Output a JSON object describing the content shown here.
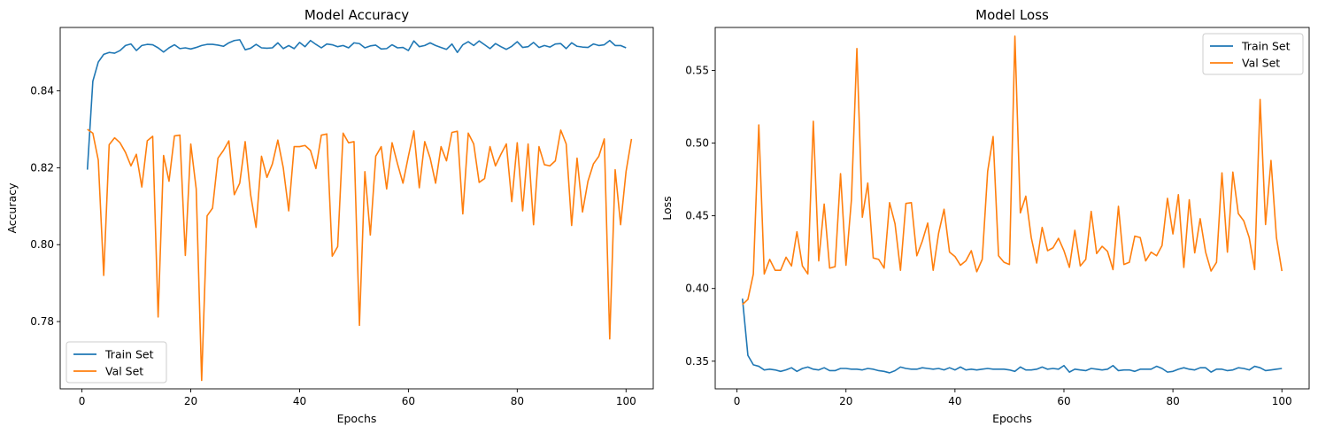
{
  "chart_data": [
    {
      "type": "line",
      "title": "Model Accuracy",
      "xlabel": "Epochs",
      "ylabel": "Accuracy",
      "xlim": [
        -4,
        105
      ],
      "ylim": [
        0.7625,
        0.8565
      ],
      "xticks": [
        0,
        20,
        40,
        60,
        80,
        100
      ],
      "yticks": [
        0.78,
        0.8,
        0.82,
        0.84
      ],
      "ytick_labels": [
        "0.78",
        "0.80",
        "0.82",
        "0.84"
      ],
      "grid": false,
      "legend_position": "lower-left",
      "colors": [
        "#1f77b4",
        "#ff7f0e"
      ],
      "x_start": 1,
      "series": [
        {
          "name": "Train Set",
          "values": [
            0.8195,
            0.8425,
            0.8475,
            0.8495,
            0.85,
            0.8498,
            0.8505,
            0.8518,
            0.8522,
            0.8505,
            0.8518,
            0.8521,
            0.852,
            0.8512,
            0.8501,
            0.8512,
            0.852,
            0.851,
            0.8512,
            0.8509,
            0.8513,
            0.8518,
            0.8521,
            0.8521,
            0.8519,
            0.8516,
            0.8525,
            0.8531,
            0.8533,
            0.8507,
            0.8511,
            0.8521,
            0.8512,
            0.8511,
            0.8512,
            0.8525,
            0.851,
            0.8518,
            0.851,
            0.8526,
            0.8515,
            0.8531,
            0.8521,
            0.8512,
            0.8522,
            0.852,
            0.8515,
            0.8518,
            0.8512,
            0.8525,
            0.8523,
            0.8512,
            0.8517,
            0.8519,
            0.8509,
            0.851,
            0.852,
            0.8512,
            0.8513,
            0.8505,
            0.853,
            0.8515,
            0.8518,
            0.8525,
            0.8518,
            0.8513,
            0.8508,
            0.8522,
            0.85,
            0.852,
            0.8528,
            0.8518,
            0.853,
            0.852,
            0.851,
            0.8523,
            0.8515,
            0.8508,
            0.8516,
            0.8528,
            0.8513,
            0.8515,
            0.8526,
            0.8513,
            0.8518,
            0.8514,
            0.8522,
            0.8523,
            0.851,
            0.8525,
            0.8516,
            0.8514,
            0.8513,
            0.8522,
            0.8518,
            0.852,
            0.8531,
            0.8518,
            0.8518,
            0.8512
          ]
        },
        {
          "name": "Val Set",
          "values": [
            0.83,
            0.829,
            0.822,
            0.792,
            0.826,
            0.8278,
            0.8265,
            0.824,
            0.8205,
            0.8235,
            0.815,
            0.827,
            0.8282,
            0.7812,
            0.8232,
            0.8165,
            0.8283,
            0.8285,
            0.7972,
            0.8262,
            0.8145,
            0.7647,
            0.8075,
            0.8095,
            0.8225,
            0.8245,
            0.827,
            0.813,
            0.816,
            0.8268,
            0.813,
            0.8045,
            0.823,
            0.8175,
            0.821,
            0.8272,
            0.82,
            0.8088,
            0.8255,
            0.8255,
            0.8258,
            0.8245,
            0.8198,
            0.8285,
            0.8288,
            0.797,
            0.7995,
            0.829,
            0.8265,
            0.8268,
            0.779,
            0.819,
            0.8025,
            0.823,
            0.8255,
            0.8145,
            0.8265,
            0.821,
            0.816,
            0.823,
            0.8296,
            0.8148,
            0.8268,
            0.8225,
            0.816,
            0.8255,
            0.8218,
            0.8292,
            0.8295,
            0.808,
            0.829,
            0.8262,
            0.8162,
            0.8172,
            0.8255,
            0.8205,
            0.8235,
            0.8262,
            0.8112,
            0.8265,
            0.8088,
            0.8262,
            0.8052,
            0.8255,
            0.8208,
            0.8205,
            0.8218,
            0.8298,
            0.8262,
            0.805,
            0.8225,
            0.8085,
            0.8165,
            0.821,
            0.823,
            0.8275,
            0.7755,
            0.8195,
            0.8052,
            0.819,
            0.8275
          ]
        }
      ]
    },
    {
      "type": "line",
      "title": "Model Loss",
      "xlabel": "Epochs",
      "ylabel": "Loss",
      "xlim": [
        -4,
        105
      ],
      "ylim": [
        0.331,
        0.5795
      ],
      "xticks": [
        0,
        20,
        40,
        60,
        80,
        100
      ],
      "yticks": [
        0.35,
        0.4,
        0.45,
        0.5,
        0.55
      ],
      "ytick_labels": [
        "0.35",
        "0.40",
        "0.45",
        "0.50",
        "0.55"
      ],
      "grid": false,
      "legend_position": "upper-right",
      "colors": [
        "#1f77b4",
        "#ff7f0e"
      ],
      "x_start": 1,
      "series": [
        {
          "name": "Train Set",
          "values": [
            0.393,
            0.354,
            0.3475,
            0.3465,
            0.344,
            0.3445,
            0.344,
            0.343,
            0.344,
            0.3455,
            0.343,
            0.345,
            0.346,
            0.3445,
            0.344,
            0.3455,
            0.3435,
            0.3435,
            0.345,
            0.345,
            0.3445,
            0.3445,
            0.344,
            0.345,
            0.3445,
            0.3435,
            0.343,
            0.342,
            0.3435,
            0.346,
            0.345,
            0.3445,
            0.3445,
            0.3455,
            0.345,
            0.3445,
            0.345,
            0.344,
            0.3455,
            0.344,
            0.346,
            0.344,
            0.3445,
            0.344,
            0.3445,
            0.345,
            0.3445,
            0.3445,
            0.3445,
            0.344,
            0.343,
            0.346,
            0.344,
            0.344,
            0.3445,
            0.346,
            0.3445,
            0.345,
            0.3445,
            0.347,
            0.3425,
            0.3445,
            0.344,
            0.3435,
            0.345,
            0.3445,
            0.344,
            0.3445,
            0.347,
            0.3435,
            0.344,
            0.344,
            0.343,
            0.3445,
            0.3445,
            0.3445,
            0.3465,
            0.345,
            0.3425,
            0.343,
            0.3445,
            0.3455,
            0.3445,
            0.344,
            0.3455,
            0.3455,
            0.3425,
            0.3445,
            0.3445,
            0.3435,
            0.344,
            0.3455,
            0.345,
            0.344,
            0.3465,
            0.3455,
            0.3435,
            0.344,
            0.3445,
            0.345
          ]
        },
        {
          "name": "Val Set",
          "values": [
            0.389,
            0.3925,
            0.41,
            0.5125,
            0.41,
            0.42,
            0.4125,
            0.4125,
            0.4215,
            0.4155,
            0.439,
            0.4155,
            0.41,
            0.515,
            0.419,
            0.458,
            0.414,
            0.415,
            0.479,
            0.416,
            0.461,
            0.565,
            0.449,
            0.4725,
            0.421,
            0.42,
            0.414,
            0.459,
            0.4445,
            0.4125,
            0.4585,
            0.459,
            0.4225,
            0.4325,
            0.445,
            0.4125,
            0.438,
            0.4545,
            0.425,
            0.422,
            0.416,
            0.419,
            0.426,
            0.4115,
            0.42,
            0.4805,
            0.5045,
            0.4225,
            0.418,
            0.4165,
            0.5735,
            0.452,
            0.4635,
            0.435,
            0.4175,
            0.442,
            0.426,
            0.428,
            0.4345,
            0.426,
            0.4145,
            0.44,
            0.4155,
            0.42,
            0.453,
            0.424,
            0.429,
            0.4255,
            0.413,
            0.4565,
            0.4165,
            0.418,
            0.436,
            0.435,
            0.419,
            0.425,
            0.4225,
            0.4295,
            0.462,
            0.4375,
            0.4645,
            0.4145,
            0.461,
            0.4245,
            0.448,
            0.425,
            0.412,
            0.418,
            0.4795,
            0.425,
            0.48,
            0.4515,
            0.4465,
            0.435,
            0.413,
            0.53,
            0.444,
            0.488,
            0.435,
            0.412
          ]
        }
      ]
    }
  ]
}
